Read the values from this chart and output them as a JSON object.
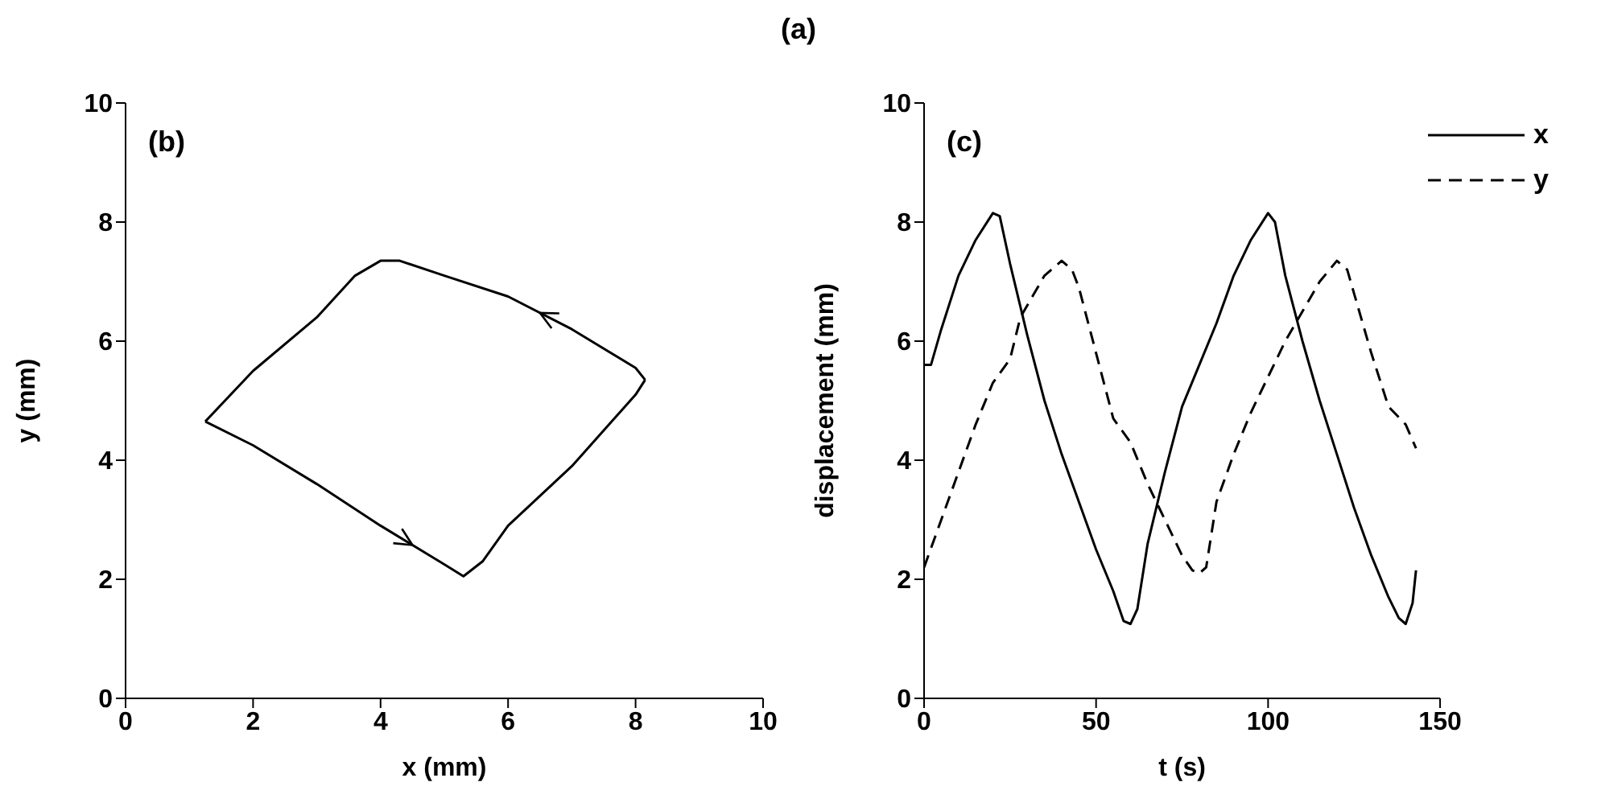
{
  "chart_data": [
    {
      "type": "line",
      "title": "(a)",
      "xlabel": "x (mm)",
      "ylabel": "y (mm)",
      "annotations": [
        "(b)"
      ],
      "marker": "none",
      "line_style": "solid",
      "xlim": [
        0,
        10
      ],
      "xticks": [
        0,
        2,
        4,
        6,
        8,
        10
      ],
      "ylim": [
        0,
        10
      ],
      "yticks": [
        0,
        2,
        4,
        6,
        8,
        10
      ],
      "series": [
        {
          "color": "#000000",
          "x": [
            1.25,
            2,
            3,
            4,
            5,
            5.3,
            5.6,
            6,
            6.5,
            7,
            7.5,
            8,
            8.15
          ],
          "values": [
            4.65,
            4.25,
            3.6,
            2.9,
            2.25,
            2.05,
            2.3,
            2.9,
            3.4,
            3.9,
            4.5,
            5.1,
            5.35
          ]
        },
        {
          "color": "#000000",
          "x": [
            8.15,
            8,
            7,
            6,
            5,
            4.3,
            4,
            3.6,
            3,
            2,
            1.25
          ],
          "values": [
            5.35,
            5.55,
            6.2,
            6.75,
            7.1,
            7.35,
            7.35,
            7.1,
            6.4,
            5.5,
            4.65
          ]
        }
      ]
    },
    {
      "type": "line",
      "xlabel": "t (s)",
      "ylabel": "displacement (mm)",
      "annotations": [
        "(c)"
      ],
      "marker": "none",
      "legend": "top right",
      "xlim": [
        0,
        150
      ],
      "xticks": [
        0,
        50,
        100,
        150
      ],
      "ylim": [
        0,
        10
      ],
      "yticks": [
        0,
        2,
        4,
        6,
        8,
        10
      ],
      "series": [
        {
          "name": "x",
          "color": "#000000",
          "line_style": "solid",
          "x": [
            0,
            2,
            5,
            10,
            15,
            20,
            22,
            25,
            30,
            35,
            40,
            45,
            50,
            55,
            58,
            60,
            62,
            65,
            70,
            75,
            80,
            85,
            90,
            95,
            100,
            102,
            105,
            110,
            115,
            120,
            125,
            130,
            135,
            138,
            140,
            142,
            143
          ],
          "values": [
            5.6,
            5.6,
            6.2,
            7.1,
            7.7,
            8.15,
            8.1,
            7.3,
            6.1,
            5.0,
            4.1,
            3.3,
            2.5,
            1.8,
            1.3,
            1.25,
            1.5,
            2.6,
            3.8,
            4.9,
            5.6,
            6.3,
            7.1,
            7.7,
            8.15,
            8.0,
            7.1,
            6.0,
            5.0,
            4.1,
            3.2,
            2.4,
            1.7,
            1.35,
            1.25,
            1.6,
            2.15
          ]
        },
        {
          "name": "y",
          "color": "#000000",
          "line_style": "dashed",
          "x": [
            0,
            5,
            10,
            15,
            20,
            25,
            28,
            32,
            35,
            40,
            43,
            45,
            50,
            55,
            60,
            65,
            70,
            75,
            78,
            80,
            82,
            85,
            90,
            95,
            100,
            105,
            110,
            115,
            120,
            123,
            125,
            130,
            135,
            140,
            143
          ],
          "values": [
            2.2,
            3.0,
            3.8,
            4.6,
            5.3,
            5.7,
            6.4,
            6.8,
            7.1,
            7.35,
            7.2,
            6.9,
            5.8,
            4.7,
            4.3,
            3.6,
            3.0,
            2.4,
            2.15,
            2.1,
            2.2,
            3.3,
            4.1,
            4.8,
            5.4,
            6.0,
            6.5,
            7.0,
            7.35,
            7.2,
            6.8,
            5.8,
            4.9,
            4.6,
            4.2
          ]
        }
      ]
    }
  ]
}
